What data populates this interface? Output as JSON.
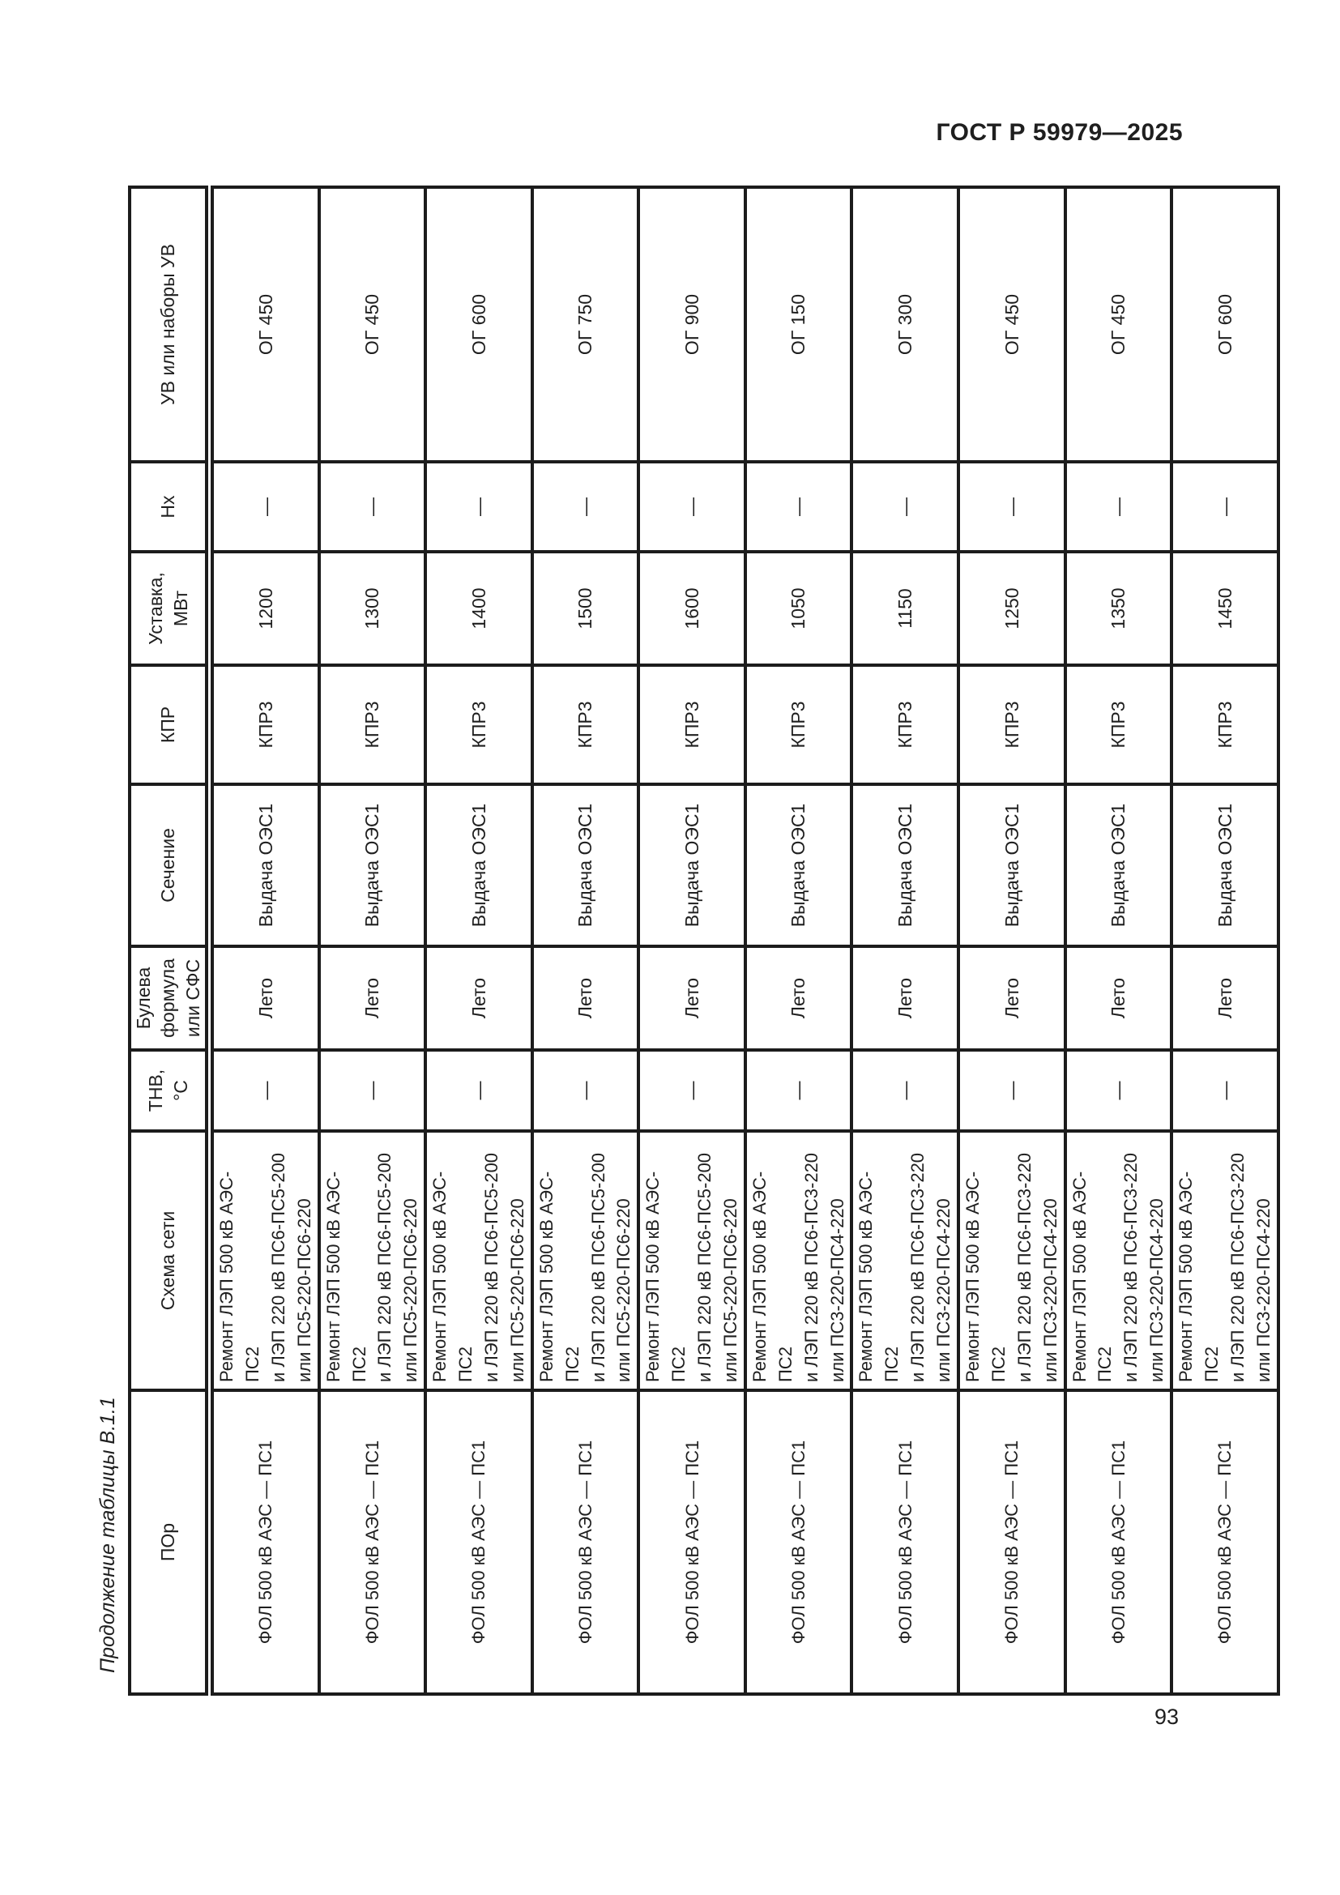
{
  "document": {
    "standard_header": "ГОСТ Р 59979—2025",
    "page_number": "93"
  },
  "table": {
    "caption": "Продолжение таблицы В.1.1",
    "columns": [
      {
        "id": "por",
        "label": "ПОр"
      },
      {
        "id": "schema",
        "label": "Схема сети"
      },
      {
        "id": "tnv",
        "label": "ТНВ,\n°С"
      },
      {
        "id": "boolf",
        "label": "Булева\nформула\nили СФС"
      },
      {
        "id": "section",
        "label": "Сечение"
      },
      {
        "id": "kpr",
        "label": "КПР"
      },
      {
        "id": "setpoint",
        "label": "Уставка,\nМВт"
      },
      {
        "id": "nx",
        "label": "Нх"
      },
      {
        "id": "uv",
        "label": "УВ или наборы УВ"
      }
    ],
    "rows": [
      [
        "ФОЛ 500 кВ АЭС — ПС1",
        "Ремонт ЛЭП 500 кВ АЭС-ПС2\nи ЛЭП 220 кВ ПС6-ПС5-200\nили ПС5-220-ПС6-220",
        "—",
        "Лето",
        "Выдача ОЭС1",
        "КПР3",
        "1200",
        "—",
        "ОГ 450"
      ],
      [
        "ФОЛ 500 кВ АЭС — ПС1",
        "Ремонт ЛЭП 500 кВ АЭС-ПС2\nи ЛЭП 220 кВ ПС6-ПС5-200\nили ПС5-220-ПС6-220",
        "—",
        "Лето",
        "Выдача ОЭС1",
        "КПР3",
        "1300",
        "—",
        "ОГ 450"
      ],
      [
        "ФОЛ 500 кВ АЭС — ПС1",
        "Ремонт ЛЭП 500 кВ АЭС-ПС2\nи ЛЭП 220 кВ ПС6-ПС5-200\nили ПС5-220-ПС6-220",
        "—",
        "Лето",
        "Выдача ОЭС1",
        "КПР3",
        "1400",
        "—",
        "ОГ 600"
      ],
      [
        "ФОЛ 500 кВ АЭС — ПС1",
        "Ремонт ЛЭП 500 кВ АЭС-ПС2\nи ЛЭП 220 кВ ПС6-ПС5-200\nили ПС5-220-ПС6-220",
        "—",
        "Лето",
        "Выдача ОЭС1",
        "КПР3",
        "1500",
        "—",
        "ОГ 750"
      ],
      [
        "ФОЛ 500 кВ АЭС — ПС1",
        "Ремонт ЛЭП 500 кВ АЭС-ПС2\nи ЛЭП 220 кВ ПС6-ПС5-200\nили ПС5-220-ПС6-220",
        "—",
        "Лето",
        "Выдача ОЭС1",
        "КПР3",
        "1600",
        "—",
        "ОГ 900"
      ],
      [
        "ФОЛ 500 кВ АЭС — ПС1",
        "Ремонт ЛЭП 500 кВ АЭС-ПС2\nи ЛЭП 220 кВ ПС6-ПС3-220\nили ПС3-220-ПС4-220",
        "—",
        "Лето",
        "Выдача ОЭС1",
        "КПР3",
        "1050",
        "—",
        "ОГ 150"
      ],
      [
        "ФОЛ 500 кВ АЭС — ПС1",
        "Ремонт ЛЭП 500 кВ АЭС-ПС2\nи ЛЭП 220 кВ ПС6-ПС3-220\nили ПС3-220-ПС4-220",
        "—",
        "Лето",
        "Выдача ОЭС1",
        "КПР3",
        "1150",
        "—",
        "ОГ 300"
      ],
      [
        "ФОЛ 500 кВ АЭС — ПС1",
        "Ремонт ЛЭП 500 кВ АЭС-ПС2\nи ЛЭП 220 кВ ПС6-ПС3-220\nили ПС3-220-ПС4-220",
        "—",
        "Лето",
        "Выдача ОЭС1",
        "КПР3",
        "1250",
        "—",
        "ОГ 450"
      ],
      [
        "ФОЛ 500 кВ АЭС — ПС1",
        "Ремонт ЛЭП 500 кВ АЭС-ПС2\nи ЛЭП 220 кВ ПС6-ПС3-220\nили ПС3-220-ПС4-220",
        "—",
        "Лето",
        "Выдача ОЭС1",
        "КПР3",
        "1350",
        "—",
        "ОГ 450"
      ],
      [
        "ФОЛ 500 кВ АЭС — ПС1",
        "Ремонт ЛЭП 500 кВ АЭС-ПС2\nи ЛЭП 220 кВ ПС6-ПС3-220\nили ПС3-220-ПС4-220",
        "—",
        "Лето",
        "Выдача ОЭС1",
        "КПР3",
        "1450",
        "—",
        "ОГ 600"
      ]
    ]
  }
}
